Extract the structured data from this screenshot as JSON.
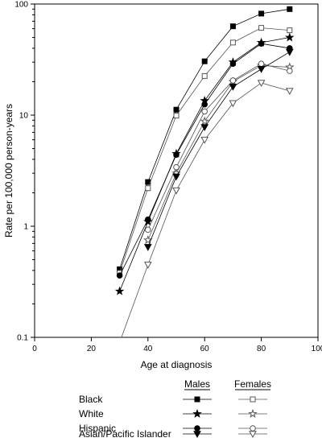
{
  "chart_data": {
    "type": "line",
    "xlabel": "Age at diagnosis",
    "ylabel": "Rate per 100,000 person-years",
    "xlim": [
      0,
      100
    ],
    "ylim": [
      0.1,
      100
    ],
    "yscale": "log",
    "grid": false,
    "x_ticks": [
      "0",
      "20",
      "40",
      "60",
      "80",
      "100"
    ],
    "y_ticks": [
      "0.1",
      "1",
      "10",
      "100"
    ],
    "legend_headers": {
      "males": "Males",
      "females": "Females"
    },
    "legend_groups": [
      "Black",
      "White",
      "Hispanic",
      "Asian/Pacific Islander"
    ],
    "x": [
      30,
      40,
      50,
      60,
      70,
      80,
      90
    ],
    "series": [
      {
        "group": 0,
        "sex": "male",
        "marker": "square",
        "filled": true,
        "color": "#000000",
        "values": [
          0.41,
          2.5,
          11.2,
          30.5,
          63,
          82,
          90
        ]
      },
      {
        "group": 0,
        "sex": "female",
        "marker": "square",
        "filled": false,
        "color": "#555555",
        "values": [
          0.38,
          2.2,
          9.9,
          22.5,
          45,
          61,
          58
        ]
      },
      {
        "group": 1,
        "sex": "male",
        "marker": "star",
        "filled": true,
        "color": "#000000",
        "values": [
          0.26,
          1.1,
          4.5,
          13.5,
          30,
          45,
          50
        ]
      },
      {
        "group": 1,
        "sex": "female",
        "marker": "star",
        "filled": false,
        "color": "#555555",
        "values": [
          null,
          0.75,
          3.0,
          8.8,
          20,
          28,
          27
        ]
      },
      {
        "group": 2,
        "sex": "male",
        "marker": "circle",
        "filled": true,
        "color": "#000000",
        "values": [
          0.36,
          1.15,
          4.4,
          12.5,
          29,
          44,
          40
        ]
      },
      {
        "group": 2,
        "sex": "female",
        "marker": "circle",
        "filled": false,
        "color": "#555555",
        "values": [
          null,
          0.93,
          3.4,
          10.8,
          20.5,
          29,
          25
        ]
      },
      {
        "group": 3,
        "sex": "male",
        "marker": "triangle-down",
        "filled": true,
        "color": "#000000",
        "values": [
          null,
          0.65,
          2.8,
          7.8,
          18,
          26,
          37
        ]
      },
      {
        "group": 3,
        "sex": "female",
        "marker": "triangle-down",
        "filled": false,
        "color": "#555555",
        "values": [
          0.09,
          0.45,
          2.1,
          6.0,
          12.8,
          19.5,
          16.5
        ]
      }
    ]
  }
}
